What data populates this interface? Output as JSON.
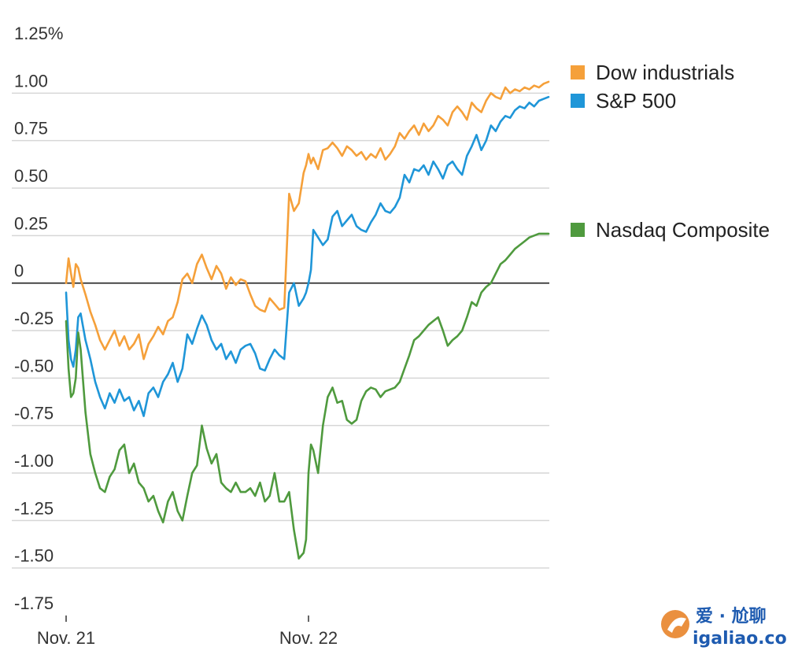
{
  "chart_data": {
    "type": "line",
    "title": "",
    "xlabel": "",
    "ylabel": "",
    "ylim": [
      -1.75,
      1.25
    ],
    "yticks": [
      {
        "value": 1.25,
        "label": "1.25%"
      },
      {
        "value": 1.0,
        "label": "1.00"
      },
      {
        "value": 0.75,
        "label": "0.75"
      },
      {
        "value": 0.5,
        "label": "0.50"
      },
      {
        "value": 0.25,
        "label": "0.25"
      },
      {
        "value": 0,
        "label": "0"
      },
      {
        "value": -0.25,
        "label": "-0.25"
      },
      {
        "value": -0.5,
        "label": "-0.50"
      },
      {
        "value": -0.75,
        "label": "-0.75"
      },
      {
        "value": -1.0,
        "label": "-1.00"
      },
      {
        "value": -1.25,
        "label": "-1.25"
      },
      {
        "value": -1.5,
        "label": "-1.50"
      },
      {
        "value": -1.75,
        "label": "-1.75"
      }
    ],
    "xlim": [
      0,
      2
    ],
    "xticks": [
      {
        "value": 0,
        "label": "Nov. 21"
      },
      {
        "value": 1,
        "label": "Nov. 22"
      }
    ],
    "grid": true,
    "legend_position": "right",
    "series": [
      {
        "name": "Dow industrials",
        "color": "#f5a03a",
        "x": [
          0,
          0.01,
          0.02,
          0.03,
          0.04,
          0.05,
          0.06,
          0.08,
          0.1,
          0.12,
          0.14,
          0.16,
          0.18,
          0.2,
          0.22,
          0.24,
          0.26,
          0.28,
          0.3,
          0.32,
          0.34,
          0.36,
          0.38,
          0.4,
          0.42,
          0.44,
          0.46,
          0.48,
          0.5,
          0.52,
          0.54,
          0.56,
          0.58,
          0.6,
          0.62,
          0.64,
          0.66,
          0.68,
          0.7,
          0.72,
          0.74,
          0.76,
          0.78,
          0.8,
          0.82,
          0.84,
          0.86,
          0.88,
          0.9,
          0.92,
          0.94,
          0.96,
          0.98,
          0.99,
          1.0,
          1.01,
          1.02,
          1.04,
          1.06,
          1.08,
          1.1,
          1.12,
          1.14,
          1.16,
          1.18,
          1.2,
          1.22,
          1.24,
          1.26,
          1.28,
          1.3,
          1.32,
          1.34,
          1.36,
          1.38,
          1.4,
          1.42,
          1.44,
          1.46,
          1.48,
          1.5,
          1.52,
          1.54,
          1.56,
          1.58,
          1.6,
          1.62,
          1.64,
          1.66,
          1.68,
          1.7,
          1.72,
          1.74,
          1.76,
          1.78,
          1.8,
          1.82,
          1.84,
          1.86,
          1.88,
          1.9,
          1.92,
          1.94,
          1.96,
          1.98,
          2.0
        ],
        "values": [
          0,
          0.13,
          0.05,
          -0.02,
          0.1,
          0.08,
          0.02,
          -0.06,
          -0.15,
          -0.22,
          -0.3,
          -0.35,
          -0.3,
          -0.25,
          -0.33,
          -0.28,
          -0.35,
          -0.32,
          -0.27,
          -0.4,
          -0.32,
          -0.28,
          -0.23,
          -0.27,
          -0.2,
          -0.18,
          -0.1,
          0.02,
          0.05,
          0.0,
          0.1,
          0.15,
          0.08,
          0.02,
          0.09,
          0.05,
          -0.03,
          0.03,
          -0.01,
          0.02,
          0.01,
          -0.06,
          -0.12,
          -0.14,
          -0.15,
          -0.08,
          -0.11,
          -0.14,
          -0.13,
          0.47,
          0.38,
          0.42,
          0.58,
          0.62,
          0.68,
          0.63,
          0.66,
          0.6,
          0.7,
          0.71,
          0.74,
          0.71,
          0.67,
          0.72,
          0.7,
          0.67,
          0.69,
          0.65,
          0.68,
          0.66,
          0.71,
          0.65,
          0.68,
          0.72,
          0.79,
          0.76,
          0.8,
          0.83,
          0.78,
          0.84,
          0.8,
          0.83,
          0.88,
          0.86,
          0.83,
          0.9,
          0.93,
          0.9,
          0.86,
          0.95,
          0.92,
          0.9,
          0.96,
          1.0,
          0.98,
          0.97,
          1.03,
          1.0,
          1.02,
          1.01,
          1.03,
          1.02,
          1.04,
          1.03,
          1.05,
          1.06
        ]
      },
      {
        "name": "S&P 500",
        "color": "#1f96d8",
        "x": [
          0,
          0.01,
          0.02,
          0.03,
          0.04,
          0.05,
          0.06,
          0.08,
          0.1,
          0.12,
          0.14,
          0.16,
          0.18,
          0.2,
          0.22,
          0.24,
          0.26,
          0.28,
          0.3,
          0.32,
          0.34,
          0.36,
          0.38,
          0.4,
          0.42,
          0.44,
          0.46,
          0.48,
          0.5,
          0.52,
          0.54,
          0.56,
          0.58,
          0.6,
          0.62,
          0.64,
          0.66,
          0.68,
          0.7,
          0.72,
          0.74,
          0.76,
          0.78,
          0.8,
          0.82,
          0.84,
          0.86,
          0.88,
          0.9,
          0.92,
          0.94,
          0.96,
          0.98,
          0.99,
          1.0,
          1.01,
          1.02,
          1.04,
          1.06,
          1.08,
          1.1,
          1.12,
          1.14,
          1.16,
          1.18,
          1.2,
          1.22,
          1.24,
          1.26,
          1.28,
          1.3,
          1.32,
          1.34,
          1.36,
          1.38,
          1.4,
          1.42,
          1.44,
          1.46,
          1.48,
          1.5,
          1.52,
          1.54,
          1.56,
          1.58,
          1.6,
          1.62,
          1.64,
          1.66,
          1.68,
          1.7,
          1.72,
          1.74,
          1.76,
          1.78,
          1.8,
          1.82,
          1.84,
          1.86,
          1.88,
          1.9,
          1.92,
          1.94,
          1.96,
          1.98,
          2.0
        ],
        "values": [
          -0.05,
          -0.3,
          -0.4,
          -0.44,
          -0.35,
          -0.18,
          -0.16,
          -0.3,
          -0.4,
          -0.52,
          -0.6,
          -0.66,
          -0.58,
          -0.63,
          -0.56,
          -0.62,
          -0.6,
          -0.67,
          -0.62,
          -0.7,
          -0.58,
          -0.55,
          -0.6,
          -0.52,
          -0.48,
          -0.42,
          -0.52,
          -0.45,
          -0.27,
          -0.32,
          -0.24,
          -0.17,
          -0.22,
          -0.3,
          -0.35,
          -0.32,
          -0.4,
          -0.36,
          -0.42,
          -0.35,
          -0.33,
          -0.32,
          -0.37,
          -0.45,
          -0.46,
          -0.4,
          -0.35,
          -0.38,
          -0.4,
          -0.05,
          0.0,
          -0.12,
          -0.08,
          -0.05,
          0.0,
          0.07,
          0.28,
          0.24,
          0.2,
          0.23,
          0.35,
          0.38,
          0.3,
          0.33,
          0.36,
          0.3,
          0.28,
          0.27,
          0.32,
          0.36,
          0.42,
          0.38,
          0.37,
          0.4,
          0.45,
          0.57,
          0.53,
          0.6,
          0.59,
          0.62,
          0.57,
          0.64,
          0.6,
          0.55,
          0.62,
          0.64,
          0.6,
          0.57,
          0.67,
          0.72,
          0.78,
          0.7,
          0.75,
          0.83,
          0.8,
          0.85,
          0.88,
          0.87,
          0.91,
          0.93,
          0.92,
          0.95,
          0.93,
          0.96,
          0.97,
          0.98
        ]
      },
      {
        "name": "Nasdaq Composite",
        "color": "#4f9a3e",
        "x": [
          0,
          0.01,
          0.02,
          0.03,
          0.04,
          0.05,
          0.06,
          0.08,
          0.1,
          0.12,
          0.14,
          0.16,
          0.18,
          0.2,
          0.22,
          0.24,
          0.26,
          0.28,
          0.3,
          0.32,
          0.34,
          0.36,
          0.38,
          0.4,
          0.42,
          0.44,
          0.46,
          0.48,
          0.5,
          0.52,
          0.54,
          0.56,
          0.58,
          0.6,
          0.62,
          0.64,
          0.66,
          0.68,
          0.7,
          0.72,
          0.74,
          0.76,
          0.78,
          0.8,
          0.82,
          0.84,
          0.86,
          0.88,
          0.9,
          0.92,
          0.94,
          0.96,
          0.98,
          0.99,
          1.0,
          1.01,
          1.02,
          1.04,
          1.06,
          1.08,
          1.1,
          1.12,
          1.14,
          1.16,
          1.18,
          1.2,
          1.22,
          1.24,
          1.26,
          1.28,
          1.3,
          1.32,
          1.34,
          1.36,
          1.38,
          1.4,
          1.42,
          1.44,
          1.46,
          1.48,
          1.5,
          1.52,
          1.54,
          1.56,
          1.58,
          1.6,
          1.62,
          1.64,
          1.66,
          1.68,
          1.7,
          1.72,
          1.74,
          1.76,
          1.78,
          1.8,
          1.82,
          1.84,
          1.86,
          1.88,
          1.9,
          1.92,
          1.94,
          1.96,
          1.98,
          2.0
        ],
        "values": [
          -0.2,
          -0.45,
          -0.6,
          -0.58,
          -0.5,
          -0.26,
          -0.35,
          -0.68,
          -0.9,
          -1.0,
          -1.08,
          -1.1,
          -1.02,
          -0.98,
          -0.88,
          -0.85,
          -1.0,
          -0.95,
          -1.05,
          -1.08,
          -1.15,
          -1.12,
          -1.2,
          -1.26,
          -1.15,
          -1.1,
          -1.2,
          -1.25,
          -1.12,
          -1.0,
          -0.96,
          -0.75,
          -0.87,
          -0.95,
          -0.9,
          -1.05,
          -1.08,
          -1.1,
          -1.05,
          -1.1,
          -1.1,
          -1.08,
          -1.12,
          -1.05,
          -1.15,
          -1.12,
          -1.0,
          -1.15,
          -1.15,
          -1.1,
          -1.3,
          -1.45,
          -1.42,
          -1.35,
          -1.0,
          -0.85,
          -0.88,
          -1.0,
          -0.75,
          -0.6,
          -0.55,
          -0.63,
          -0.62,
          -0.72,
          -0.74,
          -0.72,
          -0.62,
          -0.57,
          -0.55,
          -0.56,
          -0.6,
          -0.57,
          -0.56,
          -0.55,
          -0.52,
          -0.45,
          -0.38,
          -0.3,
          -0.28,
          -0.25,
          -0.22,
          -0.2,
          -0.18,
          -0.25,
          -0.33,
          -0.3,
          -0.28,
          -0.25,
          -0.18,
          -0.1,
          -0.12,
          -0.05,
          -0.02,
          0.0,
          0.05,
          0.1,
          0.12,
          0.15,
          0.18,
          0.2,
          0.22,
          0.24,
          0.25,
          0.26,
          0.26,
          0.26
        ]
      }
    ]
  },
  "watermark": {
    "line1": "爱 · 尬聊",
    "line2": "igaliao.com",
    "color": "#1e5bb0",
    "accent": "#e8842a"
  }
}
